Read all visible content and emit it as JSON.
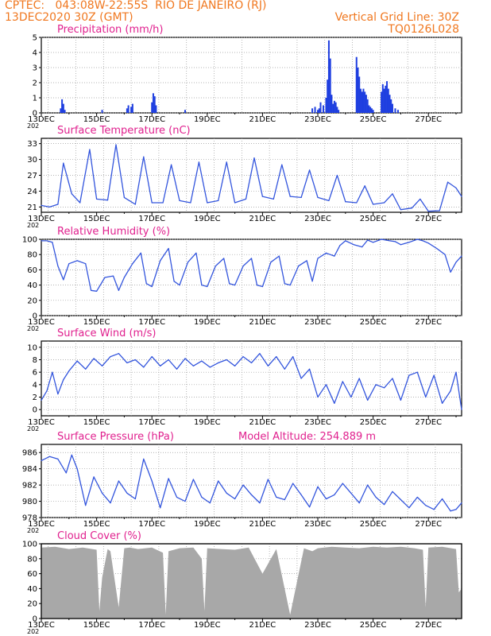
{
  "header": {
    "line1_left": "CPTEC:   043:08W-22:55S  RIO DE JANEIRO (RJ)",
    "line2_left": "13DEC2020 30Z (GMT)",
    "line2_right": "Vertical Grid Line: 30Z",
    "line3_right": "TQ0126L028"
  },
  "colors": {
    "series": "#3355dd",
    "bar": "#1f3fe0",
    "cloud": "#a8a8a8",
    "title": "#e0208e",
    "header": "#f07820",
    "grid": "#9a9a9a"
  },
  "x_axis": {
    "tick_labels": [
      "13DEC",
      "15DEC",
      "17DEC",
      "19DEC",
      "21DEC",
      "23DEC",
      "25DEC",
      "27DEC"
    ],
    "year_label": "202",
    "range_days": [
      0,
      15.2
    ]
  },
  "chart_data": [
    {
      "type": "bar",
      "title": "Precipitation (mm/h)",
      "ylim": [
        0,
        5
      ],
      "yticks": [
        "0",
        "1",
        "2",
        "3",
        "4",
        "5"
      ],
      "x": [
        0.7,
        0.75,
        0.8,
        0.85,
        2.2,
        3.1,
        3.15,
        3.25,
        3.3,
        4.0,
        4.05,
        4.1,
        4.15,
        5.2,
        9.8,
        9.9,
        10.0,
        10.05,
        10.1,
        10.2,
        10.3,
        10.35,
        10.4,
        10.45,
        10.5,
        10.55,
        10.6,
        10.65,
        10.7,
        10.75,
        11.4,
        11.45,
        11.5,
        11.55,
        11.6,
        11.65,
        11.7,
        11.75,
        11.8,
        11.85,
        11.9,
        11.95,
        12.0,
        12.3,
        12.35,
        12.4,
        12.45,
        12.5,
        12.55,
        12.6,
        12.65,
        12.7,
        12.8,
        12.9
      ],
      "values": [
        0.3,
        0.9,
        0.6,
        0.2,
        0.2,
        0.3,
        0.5,
        0.4,
        0.6,
        0.7,
        1.3,
        1.1,
        0.5,
        0.2,
        0.3,
        0.4,
        0.2,
        0.3,
        0.7,
        0.5,
        1.0,
        2.2,
        4.8,
        3.6,
        1.2,
        0.6,
        0.8,
        0.7,
        0.4,
        0.2,
        3.7,
        3.0,
        2.4,
        1.6,
        1.4,
        1.6,
        1.4,
        1.2,
        0.9,
        0.5,
        0.4,
        0.3,
        0.2,
        1.4,
        1.9,
        1.6,
        1.8,
        2.1,
        1.6,
        1.2,
        0.9,
        0.6,
        0.3,
        0.2
      ]
    },
    {
      "type": "line",
      "title": "Surface Temperature (nC)",
      "ylim": [
        20,
        34
      ],
      "yticks": [
        "21",
        "24",
        "27",
        "30",
        "33"
      ],
      "x": [
        0,
        0.3,
        0.6,
        0.8,
        1.1,
        1.4,
        1.75,
        2.0,
        2.4,
        2.7,
        3.0,
        3.4,
        3.7,
        4.0,
        4.4,
        4.7,
        5.0,
        5.4,
        5.7,
        6.0,
        6.4,
        6.7,
        7.0,
        7.4,
        7.7,
        8.0,
        8.4,
        8.7,
        9.0,
        9.4,
        9.7,
        10.0,
        10.4,
        10.7,
        11.0,
        11.4,
        11.7,
        12.0,
        12.4,
        12.7,
        13.0,
        13.4,
        13.7,
        14.0,
        14.4,
        14.7,
        15.0,
        15.2
      ],
      "values": [
        21.3,
        21,
        21.5,
        29.3,
        23.5,
        21.8,
        31.9,
        22.5,
        22.3,
        32.8,
        22.8,
        21.5,
        30.5,
        21.8,
        21.8,
        29,
        22.2,
        21.8,
        29.5,
        21.8,
        22.2,
        29.5,
        21.8,
        22.5,
        30.3,
        23,
        22.5,
        29,
        23,
        22.8,
        28,
        22.8,
        22.2,
        27,
        22,
        21.8,
        25,
        21.5,
        21.8,
        23.5,
        20.5,
        20.8,
        22.5,
        20.2,
        20.3,
        25.7,
        24.6,
        23.0
      ]
    },
    {
      "type": "line",
      "title": "Relative Humidity (%)",
      "ylim": [
        0,
        100
      ],
      "yticks": [
        "0",
        "20",
        "40",
        "60",
        "80",
        "100"
      ],
      "x": [
        0,
        0.2,
        0.4,
        0.6,
        0.8,
        1.0,
        1.3,
        1.6,
        1.8,
        2.0,
        2.3,
        2.6,
        2.8,
        3.0,
        3.3,
        3.6,
        3.8,
        4.0,
        4.3,
        4.6,
        4.8,
        5.0,
        5.3,
        5.6,
        5.8,
        6.0,
        6.3,
        6.6,
        6.8,
        7.0,
        7.3,
        7.6,
        7.8,
        8.0,
        8.3,
        8.6,
        8.8,
        9.0,
        9.3,
        9.6,
        9.8,
        10.0,
        10.3,
        10.6,
        10.8,
        11.0,
        11.3,
        11.6,
        11.8,
        12.0,
        12.3,
        12.6,
        12.8,
        13.0,
        13.3,
        13.6,
        13.8,
        14.0,
        14.3,
        14.6,
        14.8,
        15.0,
        15.2
      ],
      "values": [
        98,
        98,
        96,
        65,
        47,
        68,
        72,
        68,
        33,
        32,
        50,
        52,
        33,
        50,
        68,
        82,
        42,
        38,
        72,
        88,
        45,
        40,
        70,
        82,
        40,
        38,
        65,
        75,
        42,
        40,
        65,
        75,
        40,
        38,
        70,
        78,
        42,
        40,
        65,
        72,
        45,
        75,
        82,
        78,
        92,
        98,
        93,
        90,
        99,
        96,
        100,
        98,
        97,
        93,
        96,
        100,
        98,
        95,
        88,
        80,
        57,
        70,
        78
      ]
    },
    {
      "type": "line",
      "title": "Surface Wind (m/s)",
      "ylim": [
        -1,
        11
      ],
      "yticks": [
        "0",
        "2",
        "4",
        "6",
        "8",
        "10"
      ],
      "x": [
        0,
        0.2,
        0.4,
        0.6,
        0.8,
        1.0,
        1.3,
        1.6,
        1.9,
        2.2,
        2.5,
        2.8,
        3.1,
        3.4,
        3.7,
        4.0,
        4.3,
        4.6,
        4.9,
        5.2,
        5.5,
        5.8,
        6.1,
        6.4,
        6.7,
        7.0,
        7.3,
        7.6,
        7.9,
        8.2,
        8.5,
        8.8,
        9.1,
        9.4,
        9.7,
        10.0,
        10.3,
        10.6,
        10.9,
        11.2,
        11.5,
        11.8,
        12.1,
        12.4,
        12.7,
        13.0,
        13.3,
        13.6,
        13.9,
        14.2,
        14.5,
        14.8,
        15.0,
        15.2
      ],
      "values": [
        1.5,
        3,
        6,
        2.5,
        4.8,
        6.2,
        7.8,
        6.5,
        8.2,
        7,
        8.5,
        9,
        7.5,
        8,
        6.8,
        8.5,
        7,
        8,
        6.5,
        8.2,
        7,
        7.8,
        6.8,
        7.5,
        8,
        7,
        8.5,
        7.5,
        9,
        7,
        8.5,
        6.5,
        8.5,
        5,
        6.5,
        2,
        4,
        1,
        4.5,
        2,
        5,
        1.5,
        4,
        3.5,
        5,
        1.5,
        5.5,
        6,
        2,
        5.5,
        1,
        3,
        6,
        0
      ]
    },
    {
      "type": "line",
      "title": "Surface Pressure (hPa)",
      "annotation": "Model Altitude: 254.889 m",
      "ylim": [
        978,
        987
      ],
      "yticks": [
        "978",
        "980",
        "982",
        "984",
        "986"
      ],
      "x": [
        0,
        0.3,
        0.6,
        0.9,
        1.1,
        1.3,
        1.6,
        1.9,
        2.2,
        2.5,
        2.8,
        3.1,
        3.4,
        3.7,
        4.0,
        4.3,
        4.6,
        4.9,
        5.2,
        5.5,
        5.8,
        6.1,
        6.4,
        6.7,
        7.0,
        7.3,
        7.6,
        7.9,
        8.2,
        8.5,
        8.8,
        9.1,
        9.4,
        9.7,
        10.0,
        10.3,
        10.6,
        10.9,
        11.2,
        11.5,
        11.8,
        12.1,
        12.4,
        12.7,
        13.0,
        13.3,
        13.6,
        13.9,
        14.2,
        14.5,
        14.8,
        15.0,
        15.2
      ],
      "values": [
        985,
        985.5,
        985.2,
        983.5,
        985.7,
        984,
        979.5,
        983,
        981,
        979.8,
        982.5,
        981,
        980.3,
        985.2,
        982.5,
        979.2,
        982.8,
        980.5,
        980,
        982.7,
        980.5,
        979.8,
        982.5,
        981,
        980.3,
        982,
        980.8,
        979.8,
        982.7,
        980.5,
        980.2,
        982.2,
        980.8,
        979.3,
        981.8,
        980.3,
        980.8,
        982.2,
        981,
        979.8,
        982,
        980.5,
        979.6,
        981.2,
        980.2,
        979.2,
        980.5,
        979.5,
        979,
        980.3,
        978.8,
        979,
        979.8
      ]
    },
    {
      "type": "area",
      "title": "Cloud Cover (%)",
      "ylim": [
        0,
        100
      ],
      "yticks": [
        "0",
        "20",
        "40",
        "60",
        "80",
        "100"
      ],
      "x": [
        0,
        0.5,
        1.0,
        1.5,
        2.0,
        2.1,
        2.2,
        2.4,
        2.5,
        2.8,
        3.0,
        3.2,
        3.5,
        4.0,
        4.4,
        4.5,
        4.6,
        5.0,
        5.5,
        5.8,
        5.9,
        6.0,
        6.5,
        7.0,
        7.5,
        8.0,
        8.5,
        9.0,
        9.5,
        9.8,
        10.0,
        10.5,
        11.0,
        11.5,
        12.0,
        12.5,
        13.0,
        13.5,
        13.8,
        13.9,
        14.0,
        14.5,
        15.0,
        15.1,
        15.2
      ],
      "values": [
        95,
        96,
        93,
        95,
        92,
        10,
        55,
        93,
        90,
        15,
        94,
        95,
        93,
        95,
        88,
        5,
        90,
        94,
        95,
        80,
        10,
        94,
        93,
        92,
        95,
        60,
        93,
        5,
        94,
        90,
        94,
        96,
        95,
        94,
        96,
        95,
        96,
        94,
        92,
        15,
        95,
        96,
        93,
        35,
        40
      ]
    }
  ]
}
